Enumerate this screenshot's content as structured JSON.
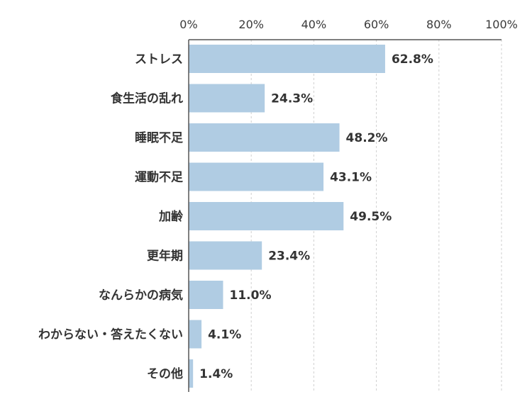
{
  "chart_data": {
    "type": "bar",
    "orientation": "horizontal",
    "categories": [
      "ストレス",
      "食生活の乱れ",
      "睡眠不足",
      "運動不足",
      "加齢",
      "更年期",
      "なんらかの病気",
      "わからない・答えたくない",
      "その他"
    ],
    "values": [
      62.8,
      24.3,
      48.2,
      43.1,
      49.5,
      23.4,
      11.0,
      4.1,
      1.4
    ],
    "value_labels": [
      "62.8%",
      "24.3%",
      "48.2%",
      "43.1%",
      "49.5%",
      "23.4%",
      "11.0%",
      "4.1%",
      "1.4%"
    ],
    "xlim": [
      0,
      100
    ],
    "x_ticks": [
      0,
      20,
      40,
      60,
      80,
      100
    ],
    "x_tick_labels": [
      "0%",
      "20%",
      "40%",
      "60%",
      "80%",
      "100%"
    ],
    "x_axis_position": "top",
    "grid": "vertical dashed",
    "title": "",
    "xlabel": "",
    "ylabel": "",
    "colors": {
      "bar": "#b0cce3",
      "axis": "#555555",
      "grid": "#cfcfcf",
      "text": "#333333"
    }
  }
}
